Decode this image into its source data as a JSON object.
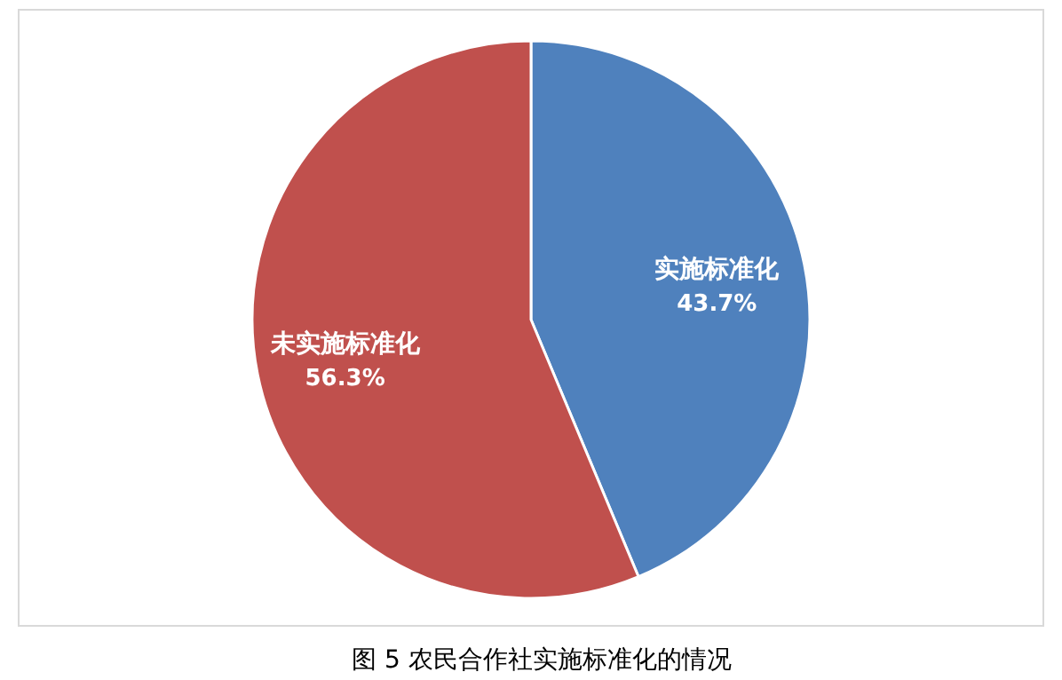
{
  "chart_data": {
    "type": "pie",
    "title": "图 5  农民合作社实施标准化的情况",
    "categories": [
      "实施标准化",
      "未实施标准化"
    ],
    "values": [
      43.7,
      56.3
    ],
    "colors": [
      "#4f81bd",
      "#c0504d"
    ],
    "value_labels": [
      "43.7%",
      "56.3%"
    ]
  }
}
